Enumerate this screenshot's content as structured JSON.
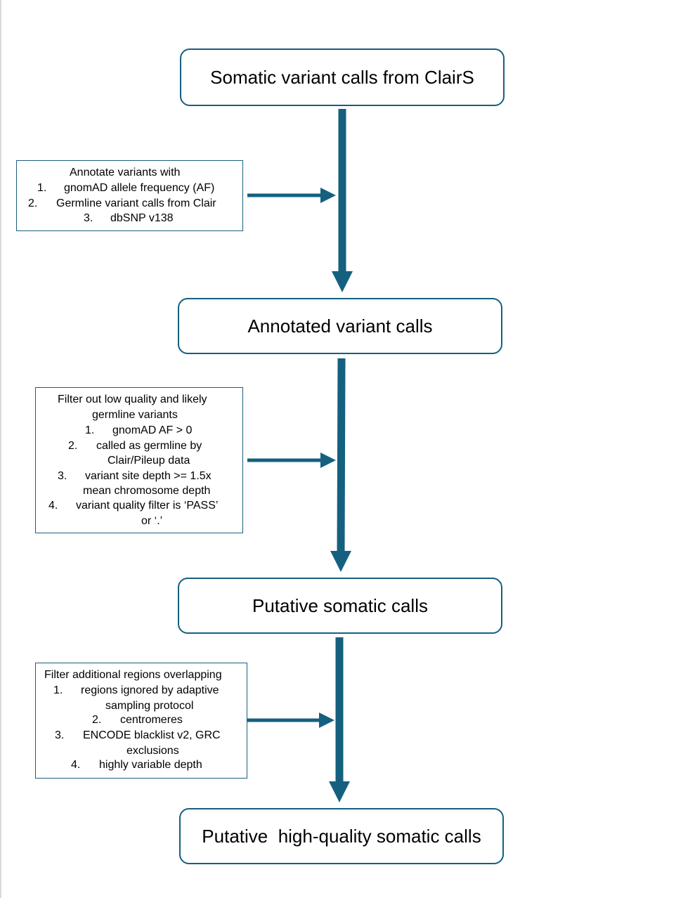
{
  "stages": [
    {
      "label": "Somatic variant calls from ClairS"
    },
    {
      "label": "Annotated variant calls"
    },
    {
      "label": "Putative somatic calls"
    },
    {
      "label": "Putative  high-quality somatic calls"
    }
  ],
  "notes": [
    {
      "heading": "Annotate variants with",
      "items": [
        {
          "num": "1.",
          "text": "gnomAD allele frequency (AF)"
        },
        {
          "num": "2.",
          "text": "Germline variant calls from Clair"
        },
        {
          "num": "3.",
          "text": "dbSNP v138"
        }
      ]
    },
    {
      "heading_lines": [
        "Filter out low quality and likely",
        "germline variants"
      ],
      "items": [
        {
          "num": "1.",
          "lines": [
            "gnomAD AF > 0"
          ]
        },
        {
          "num": "2.",
          "lines": [
            "called as germline by",
            "Clair/Pileup data"
          ]
        },
        {
          "num": "3.",
          "lines": [
            "variant site depth >= 1.5x",
            "mean chromosome depth"
          ]
        },
        {
          "num": "4.",
          "lines": [
            "variant quality filter is ‘PASS’",
            "or ‘.’"
          ]
        }
      ]
    },
    {
      "heading": "Filter additional regions overlapping",
      "items": [
        {
          "num": "1.",
          "lines": [
            "regions ignored by adaptive",
            "sampling protocol"
          ]
        },
        {
          "num": "2.",
          "lines": [
            "centromeres"
          ]
        },
        {
          "num": "3.",
          "lines": [
            "ENCODE blacklist v2, GRC",
            "exclusions"
          ]
        },
        {
          "num": "4.",
          "lines": [
            "highly variable depth"
          ]
        }
      ]
    }
  ],
  "colors": {
    "arrow": "#15607f",
    "box_border": "#15607f"
  }
}
